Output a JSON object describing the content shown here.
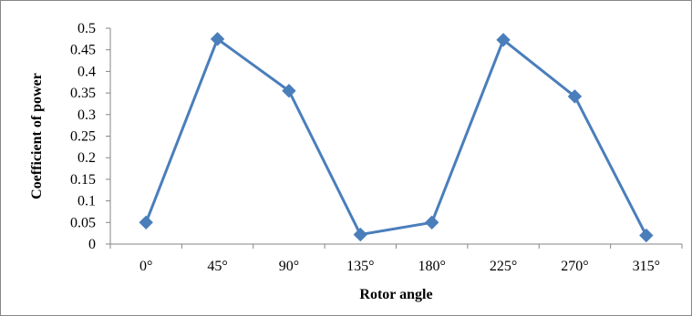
{
  "chart_data": {
    "type": "line",
    "title": "",
    "xlabel": "Rotor angle",
    "ylabel": "Coefficient of power",
    "categories": [
      "0°",
      "45°",
      "90°",
      "135°",
      "180°",
      "225°",
      "270°",
      "315°"
    ],
    "series": [
      {
        "values": [
          0.05,
          0.475,
          0.355,
          0.022,
          0.05,
          0.473,
          0.342,
          0.02
        ],
        "color": "#4a7ebb",
        "marker": "diamond"
      }
    ],
    "yticks": [
      "0",
      "0.05",
      "0.1",
      "0.15",
      "0.2",
      "0.25",
      "0.3",
      "0.35",
      "0.4",
      "0.45",
      "0.5"
    ],
    "ylim": [
      0,
      0.5
    ],
    "grid": false,
    "legend": "none"
  }
}
